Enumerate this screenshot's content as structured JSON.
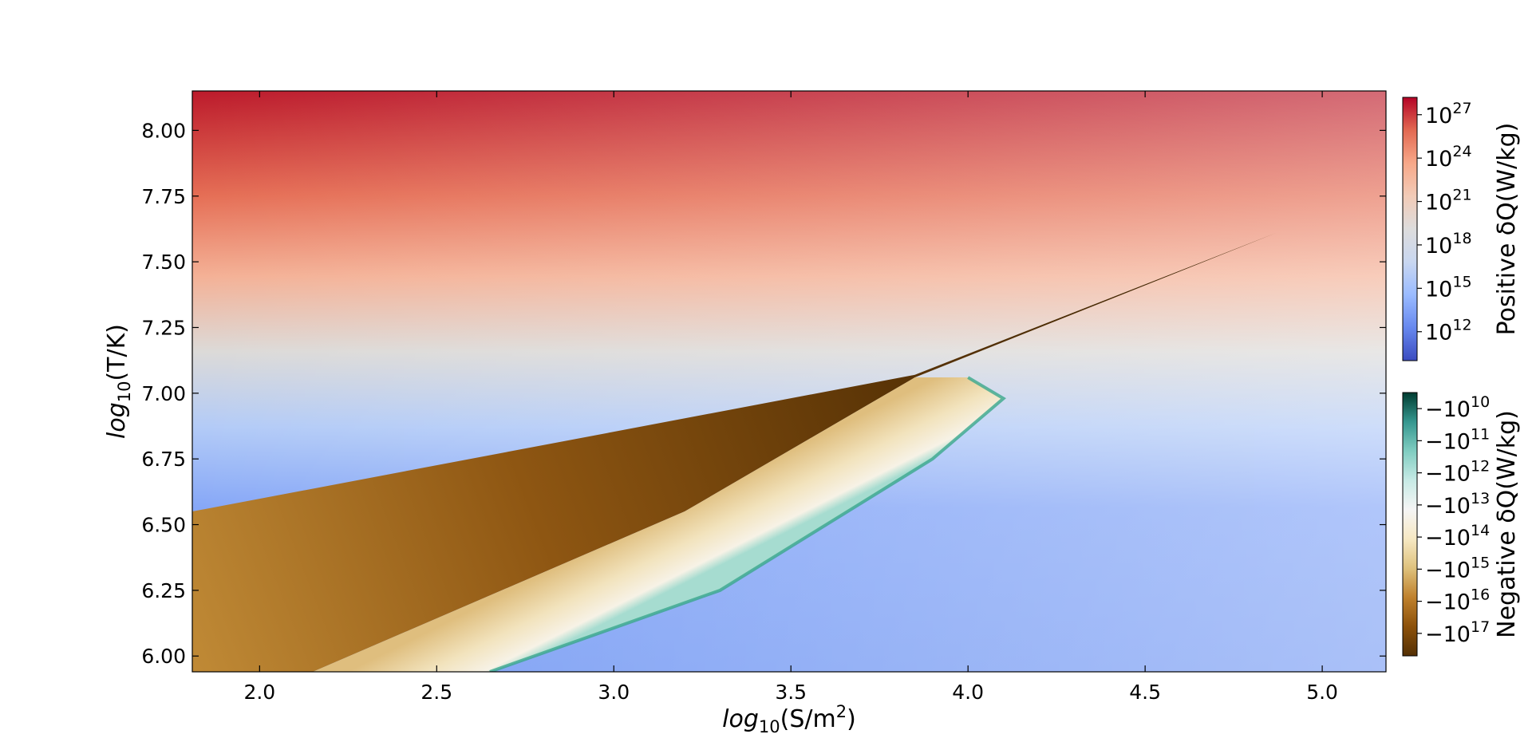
{
  "chart_data": {
    "type": "heatmap",
    "title": "",
    "xlabel": {
      "prefix": "log",
      "sub": "10",
      "main": "(S/m",
      "sup": "2",
      "close": ")"
    },
    "ylabel": {
      "prefix": "log",
      "sub": "10",
      "main": "(T/K)"
    },
    "xlim": [
      1.81,
      5.18
    ],
    "ylim": [
      5.94,
      8.15
    ],
    "x_ticks": [
      "2.0",
      "2.5",
      "3.0",
      "3.5",
      "4.0",
      "4.5",
      "5.0"
    ],
    "y_ticks": [
      "6.00",
      "6.25",
      "6.50",
      "6.75",
      "7.00",
      "7.25",
      "7.50",
      "7.75",
      "8.00"
    ],
    "regions": [
      {
        "name": "positive",
        "description_value": "δQ > 0",
        "color_range": [
          "#3b4cc0",
          "#b40426"
        ]
      },
      {
        "name": "negative-dark-wedge",
        "boundary_upper": [
          [
            1.81,
            6.55
          ],
          [
            3.85,
            7.07
          ],
          [
            4.87,
            7.61
          ]
        ],
        "boundary_lower": [
          [
            2.15,
            5.94
          ],
          [
            3.2,
            6.55
          ],
          [
            3.85,
            7.06
          ],
          [
            4.87,
            7.61
          ]
        ]
      },
      {
        "name": "negative-light-lobe",
        "boundary": [
          [
            2.15,
            5.94
          ],
          [
            2.65,
            5.94
          ],
          [
            3.3,
            6.25
          ],
          [
            3.9,
            6.75
          ],
          [
            4.1,
            6.98
          ],
          [
            4.0,
            7.06
          ],
          [
            3.85,
            7.06
          ],
          [
            3.2,
            6.55
          ],
          [
            2.15,
            5.94
          ]
        ]
      }
    ],
    "colorbars": [
      {
        "name": "positive",
        "label": "Positive  δQ(W/kg)",
        "cmap": "coolwarm",
        "colors": [
          "#3b4cc0",
          "#6788ee",
          "#9abbff",
          "#c9d7f0",
          "#dddcdc",
          "#f2cbb7",
          "#f7a889",
          "#e26952",
          "#b40426"
        ],
        "tick_labels": [
          {
            "base": "10",
            "exp": "27"
          },
          {
            "base": "10",
            "exp": "24"
          },
          {
            "base": "10",
            "exp": "21"
          },
          {
            "base": "10",
            "exp": "18"
          },
          {
            "base": "10",
            "exp": "15"
          },
          {
            "base": "10",
            "exp": "12"
          }
        ],
        "tick_values": [
          27,
          24,
          21,
          18,
          15,
          12
        ],
        "range_log": [
          10,
          28.2
        ]
      },
      {
        "name": "negative",
        "label": "Negative  δQ(W/kg)",
        "cmap": "BrBG",
        "colors": [
          "#003c30",
          "#35978f",
          "#80cdc1",
          "#c7eae5",
          "#f5f5f5",
          "#f6e8c3",
          "#dfc27d",
          "#bf812d",
          "#8c510a",
          "#543005"
        ],
        "tick_labels": [
          {
            "base": "−10",
            "exp": "10"
          },
          {
            "base": "−10",
            "exp": "11"
          },
          {
            "base": "−10",
            "exp": "12"
          },
          {
            "base": "−10",
            "exp": "13"
          },
          {
            "base": "−10",
            "exp": "14"
          },
          {
            "base": "−10",
            "exp": "15"
          },
          {
            "base": "−10",
            "exp": "16"
          },
          {
            "base": "−10",
            "exp": "17"
          }
        ],
        "tick_values": [
          10,
          11,
          12,
          13,
          14,
          15,
          16,
          17
        ],
        "range_log": [
          9.5,
          17.7
        ]
      }
    ]
  }
}
